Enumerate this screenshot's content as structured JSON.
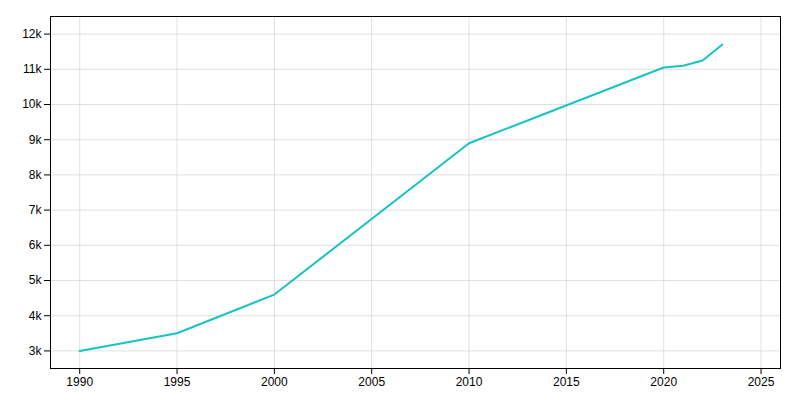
{
  "chart_data": {
    "type": "line",
    "x": [
      1990,
      1995,
      2000,
      2010,
      2020,
      2021,
      2022,
      2023
    ],
    "values": [
      3000,
      3500,
      4600,
      8900,
      11050,
      11100,
      11250,
      11700
    ],
    "color": "#17C3C3",
    "xlim": [
      1988.5,
      2026
    ],
    "ylim": [
      2500,
      12500
    ],
    "xticks": [
      1990,
      1995,
      2000,
      2005,
      2010,
      2015,
      2020,
      2025
    ],
    "yticks": [
      {
        "value": 3000,
        "label": "3k"
      },
      {
        "value": 4000,
        "label": "4k"
      },
      {
        "value": 5000,
        "label": "5k"
      },
      {
        "value": 6000,
        "label": "6k"
      },
      {
        "value": 7000,
        "label": "7k"
      },
      {
        "value": 8000,
        "label": "8k"
      },
      {
        "value": 9000,
        "label": "9k"
      },
      {
        "value": 10000,
        "label": "10k"
      },
      {
        "value": 11000,
        "label": "11k"
      },
      {
        "value": 12000,
        "label": "12k"
      }
    ],
    "grid": true
  }
}
